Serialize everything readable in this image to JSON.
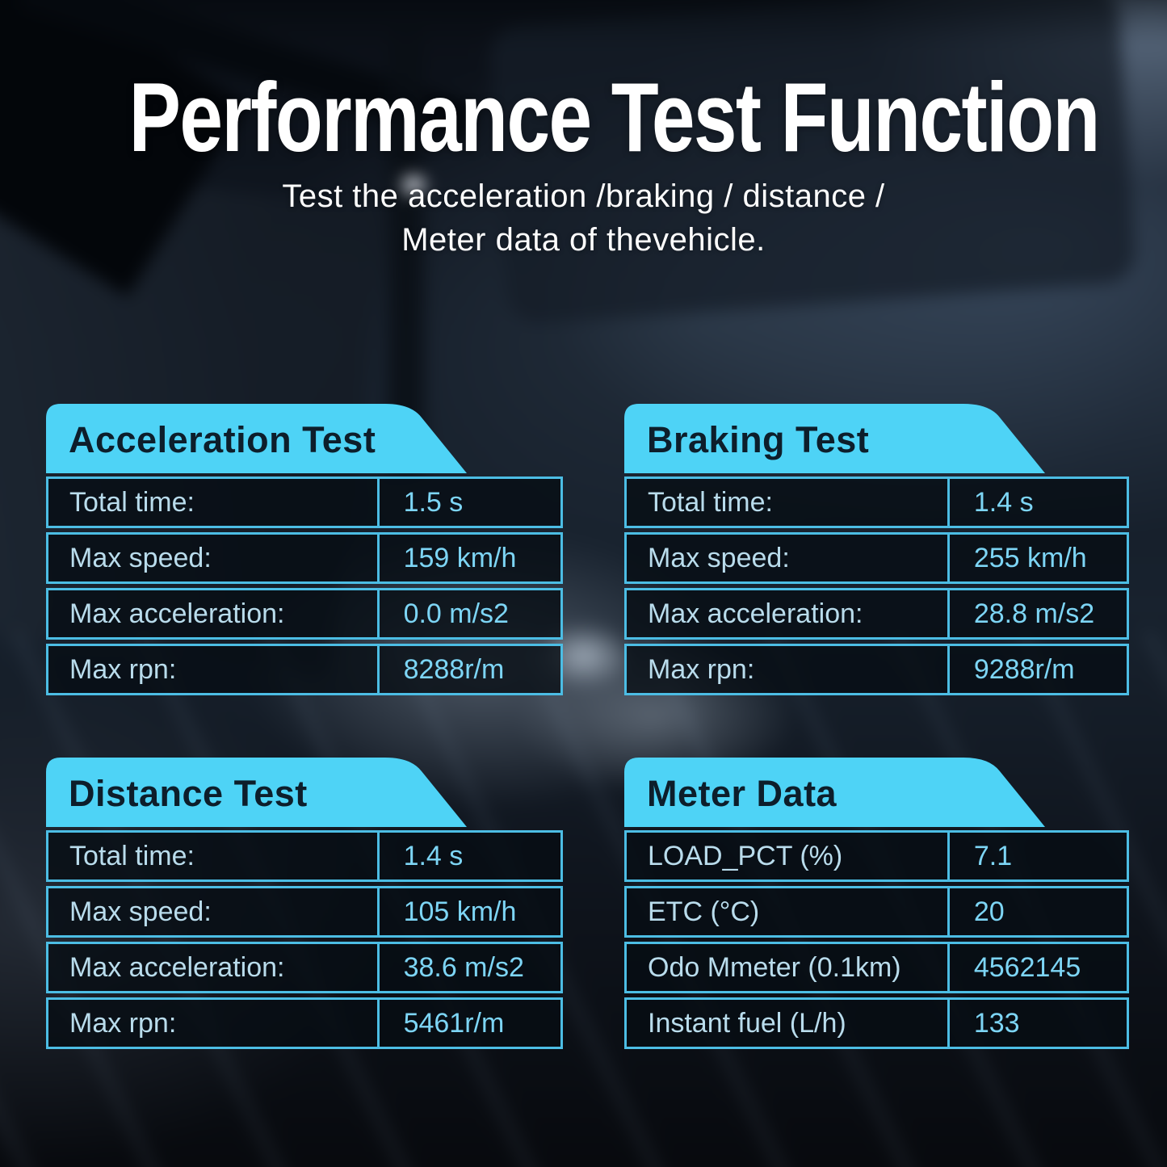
{
  "header": {
    "title": "Performance Test Function",
    "subtitle_line1": "Test the acceleration /braking / distance /",
    "subtitle_line2": "Meter data of thevehicle."
  },
  "colors": {
    "accent_cyan": "#4ed3f6",
    "panel_title_text": "#0d1e2b",
    "table_border": "#4cbde4",
    "label_text": "#b9dcec",
    "value_text": "#7dd5f5",
    "headline_text": "#ffffff"
  },
  "panels": [
    {
      "id": "acceleration-test",
      "title": "Acceleration Test",
      "rows": [
        {
          "label": "Total time:",
          "value": "1.5 s"
        },
        {
          "label": "Max speed:",
          "value": "159 km/h"
        },
        {
          "label": "Max acceleration:",
          "value": "0.0 m/s2"
        },
        {
          "label": "Max rpn:",
          "value": "8288r/m"
        }
      ]
    },
    {
      "id": "braking-test",
      "title": "Braking Test",
      "rows": [
        {
          "label": "Total time:",
          "value": "1.4 s"
        },
        {
          "label": "Max speed:",
          "value": "255 km/h"
        },
        {
          "label": "Max acceleration:",
          "value": "28.8 m/s2"
        },
        {
          "label": "Max rpn:",
          "value": "9288r/m"
        }
      ]
    },
    {
      "id": "distance-test",
      "title": "Distance Test",
      "rows": [
        {
          "label": "Total time:",
          "value": "1.4 s"
        },
        {
          "label": "Max speed:",
          "value": "105 km/h"
        },
        {
          "label": "Max acceleration:",
          "value": "38.6 m/s2"
        },
        {
          "label": "Max rpn:",
          "value": "5461r/m"
        }
      ]
    },
    {
      "id": "meter-data",
      "title": "Meter Data",
      "rows": [
        {
          "label": "LOAD_PCT (%)",
          "value": "7.1"
        },
        {
          "label": "ETC (°C)",
          "value": "20"
        },
        {
          "label": "Odo Mmeter (0.1km)",
          "value": "4562145"
        },
        {
          "label": "Instant fuel (L/h)",
          "value": "133"
        }
      ]
    }
  ]
}
